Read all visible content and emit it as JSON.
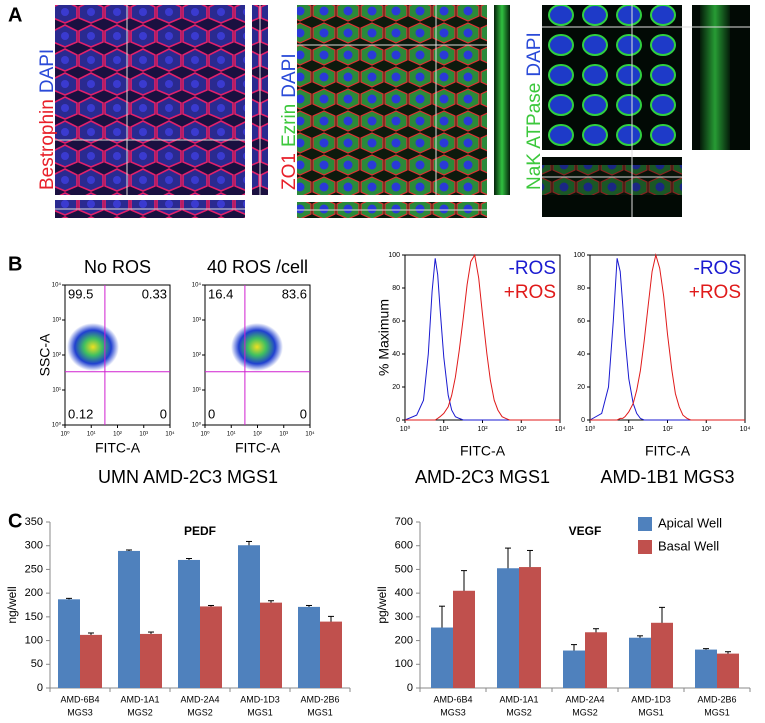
{
  "figure": {
    "panel_labels": [
      "A",
      "B",
      "C"
    ],
    "panel_a": [
      {
        "labels": [
          {
            "text": "Bestrophin",
            "color": "#e8202a"
          },
          {
            "text": "DAPI",
            "color": "#2a4ad8"
          }
        ]
      },
      {
        "labels": [
          {
            "text": "ZO1",
            "color": "#e8202a"
          },
          {
            "text": "Ezrin",
            "color": "#3cc83c"
          },
          {
            "text": "DAPI",
            "color": "#2a4ad8"
          }
        ]
      },
      {
        "labels": [
          {
            "text": "NaK ATPase",
            "color": "#3cc83c"
          },
          {
            "text": "DAPI",
            "color": "#2a4ad8"
          }
        ]
      }
    ],
    "panel_b": {
      "plots": [
        {
          "title": "No ROS",
          "quadrants": [
            99.5,
            0.33,
            0.12,
            0
          ]
        },
        {
          "title": "40 ROS /cell",
          "quadrants": [
            16.4,
            83.6,
            0,
            0
          ]
        }
      ],
      "y_label": "SSC-A",
      "x_label": "FITC-A",
      "caption": "UMN AMD-2C3 MGS1",
      "ticks": [
        {
          "value": 1,
          "label": "10⁰"
        },
        {
          "value": 10,
          "label": "10¹"
        },
        {
          "value": 100,
          "label": "10²"
        },
        {
          "value": 1000,
          "label": "10³"
        },
        {
          "value": 10000,
          "label": "10⁴"
        }
      ],
      "lim": [
        1,
        10000
      ]
    }
  },
  "chart_data": [
    {
      "type": "line",
      "x_label": "FITC-A",
      "y_label": "% Maximum",
      "caption": "AMD-2C3 MGS1",
      "xscale": "log",
      "xlim": [
        1,
        10000
      ],
      "ylim": [
        0,
        100
      ],
      "xticks": [
        {
          "value": 1,
          "label": "10⁰"
        },
        {
          "value": 10,
          "label": "10¹"
        },
        {
          "value": 100,
          "label": "10²"
        },
        {
          "value": 1000,
          "label": "10³"
        },
        {
          "value": 10000,
          "label": "10⁴"
        }
      ],
      "yticks": [
        0,
        20,
        40,
        60,
        80,
        100
      ],
      "x": [
        1,
        2,
        3,
        4,
        5,
        6,
        7,
        8,
        10,
        13,
        16,
        20,
        25,
        32,
        40,
        50,
        63,
        80,
        100,
        130,
        160,
        200,
        250,
        320,
        400,
        500,
        1000,
        10000
      ],
      "series": [
        {
          "name": "-ROS",
          "color": "#1a1ad0",
          "values": [
            0,
            3,
            12,
            40,
            78,
            98,
            88,
            68,
            38,
            15,
            6,
            2,
            1,
            0,
            0,
            0,
            0,
            0,
            0,
            0,
            0,
            0,
            0,
            0,
            0,
            0,
            0,
            0
          ]
        },
        {
          "name": "+ROS",
          "color": "#e01a1a",
          "values": [
            0,
            0,
            0,
            0,
            0,
            0,
            1,
            2,
            4,
            8,
            15,
            26,
            42,
            62,
            82,
            96,
            100,
            86,
            64,
            40,
            24,
            12,
            6,
            2,
            1,
            0,
            0,
            0
          ]
        }
      ]
    },
    {
      "type": "line",
      "x_label": "FITC-A",
      "caption": "AMD-1B1 MGS3",
      "xscale": "log",
      "xlim": [
        1,
        10000
      ],
      "ylim": [
        0,
        100
      ],
      "xticks": [
        {
          "value": 1,
          "label": "10⁰"
        },
        {
          "value": 10,
          "label": "10¹"
        },
        {
          "value": 100,
          "label": "10²"
        },
        {
          "value": 1000,
          "label": "10³"
        },
        {
          "value": 10000,
          "label": "10⁴"
        }
      ],
      "yticks": [
        0,
        20,
        40,
        60,
        80,
        100
      ],
      "x": [
        1,
        2,
        3,
        4,
        5,
        6,
        7,
        8,
        10,
        13,
        16,
        20,
        25,
        32,
        40,
        50,
        63,
        80,
        100,
        130,
        160,
        200,
        250,
        320,
        400,
        500,
        1000,
        10000
      ],
      "series": [
        {
          "name": "-ROS",
          "color": "#1a1ad0",
          "values": [
            0,
            4,
            20,
            60,
            98,
            90,
            70,
            50,
            25,
            10,
            4,
            1,
            0,
            0,
            0,
            0,
            0,
            0,
            0,
            0,
            0,
            0,
            0,
            0,
            0,
            0,
            0,
            0
          ]
        },
        {
          "name": "+ROS",
          "color": "#e01a1a",
          "values": [
            0,
            0,
            0,
            0,
            0,
            1,
            1,
            2,
            5,
            10,
            18,
            30,
            48,
            70,
            90,
            100,
            92,
            75,
            52,
            30,
            16,
            8,
            3,
            1,
            0,
            0,
            0,
            0
          ]
        }
      ]
    },
    {
      "type": "bar",
      "title": "PEDF",
      "y_label": "ng/well",
      "ylim": [
        0,
        350
      ],
      "yticks": [
        0,
        50,
        100,
        150,
        200,
        250,
        300,
        350
      ],
      "categories": [
        "AMD-6B4",
        "AMD-1A1",
        "AMD-2A4",
        "AMD-1D3",
        "AMD-2B6"
      ],
      "category_sublabels": [
        "MGS3",
        "MGS2",
        "MGS2",
        "MGS1",
        "MGS1"
      ],
      "legend": false,
      "series": [
        {
          "name": "Apical Well",
          "color": "#4f81bd",
          "values": [
            187,
            289,
            270,
            301,
            171
          ],
          "errors": [
            2,
            2,
            3,
            8,
            3
          ]
        },
        {
          "name": "Basal Well",
          "color": "#c0504d",
          "values": [
            112,
            114,
            172,
            180,
            140
          ],
          "errors": [
            4,
            4,
            2,
            4,
            11
          ]
        }
      ]
    },
    {
      "type": "bar",
      "title": "VEGF",
      "y_label": "pg/well",
      "ylim": [
        0,
        700
      ],
      "yticks": [
        0,
        100,
        200,
        300,
        400,
        500,
        600,
        700
      ],
      "categories": [
        "AMD-6B4",
        "AMD-1A1",
        "AMD-2A4",
        "AMD-1D3",
        "AMD-2B6"
      ],
      "category_sublabels": [
        "MGS3",
        "MGS2",
        "MGS2",
        "MGS1",
        "MGS1"
      ],
      "legend": true,
      "series": [
        {
          "name": "Apical Well",
          "color": "#4f81bd",
          "values": [
            255,
            505,
            158,
            212,
            162
          ],
          "errors": [
            90,
            85,
            25,
            8,
            4
          ]
        },
        {
          "name": "Basal Well",
          "color": "#c0504d",
          "values": [
            410,
            510,
            235,
            275,
            145
          ],
          "errors": [
            85,
            70,
            15,
            65,
            8
          ]
        }
      ]
    }
  ]
}
